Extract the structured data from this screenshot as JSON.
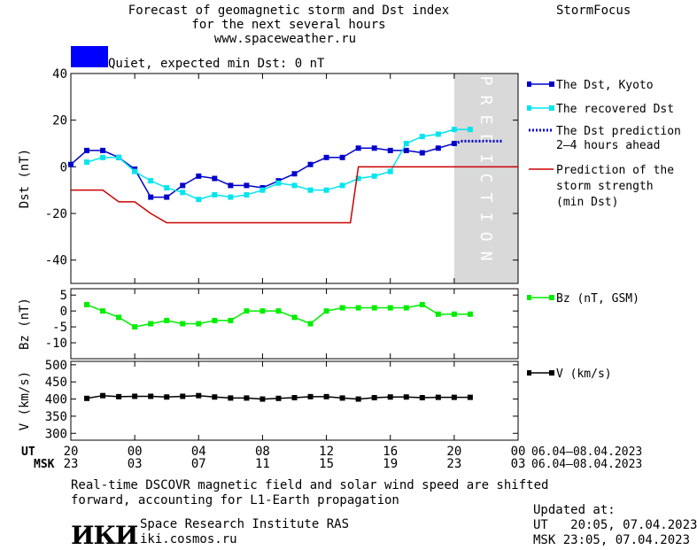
{
  "header": {
    "title_line1": "Forecast of geomagnetic storm and Dst index",
    "title_line2": "for the next several hours",
    "website": "www.spaceweather.ru",
    "brand": "StormFocus"
  },
  "status": {
    "color": "#0000ff",
    "text": "Quiet, expected min Dst: 0 nT"
  },
  "prediction_label": "PREDICTION",
  "chart_data": [
    {
      "type": "line",
      "ylabel": "Dst (nT)",
      "ylim": [
        -50,
        40
      ],
      "yticks": [
        -40,
        -20,
        0,
        20,
        40
      ],
      "x": [
        20.5,
        21,
        22,
        23,
        24,
        25,
        26,
        27,
        28,
        29,
        30,
        31,
        32,
        33,
        34,
        35,
        36,
        37,
        38,
        39,
        40,
        41,
        42,
        43,
        44,
        45,
        46
      ],
      "series": [
        {
          "name": "The Dst, Kyoto",
          "color": "#0000cc",
          "x": [
            20,
            21,
            22,
            23,
            24,
            25,
            26,
            27,
            28,
            29,
            30,
            31,
            32,
            33,
            34,
            35,
            36,
            37,
            38,
            39,
            40,
            41,
            42,
            43,
            44
          ],
          "values": [
            1,
            7,
            7,
            4,
            -1,
            -13,
            -13,
            -8,
            -4,
            -5,
            -8,
            -8,
            -9,
            -6,
            -3,
            1,
            4,
            4,
            8,
            8,
            7,
            7,
            6,
            8,
            10
          ]
        },
        {
          "name": "The recovered Dst",
          "color": "#00e5ee",
          "x": [
            21,
            22,
            23,
            24,
            25,
            26,
            27,
            28,
            29,
            30,
            31,
            32,
            33,
            34,
            35,
            36,
            37,
            38,
            39,
            40,
            41,
            42,
            43,
            44,
            45
          ],
          "values": [
            2,
            4,
            4,
            -2,
            -6,
            -9,
            -11,
            -14,
            -12,
            -13,
            -12,
            -10,
            -7,
            -8,
            -10,
            -10,
            -8,
            -5,
            -4,
            -2,
            10,
            13,
            14,
            16,
            16
          ]
        },
        {
          "name": "The Dst prediction 2-4 hours ahead",
          "color": "#0000cc",
          "dotted": true,
          "x": [
            44,
            44.5,
            45,
            46,
            47
          ],
          "values": [
            10,
            11,
            11,
            11,
            11
          ]
        },
        {
          "name": "Prediction of the storm strength (min Dst)",
          "color": "#cc0000",
          "x": [
            20,
            22,
            23,
            24,
            25,
            26,
            28,
            30,
            32,
            34,
            36,
            37,
            37.5,
            38,
            39,
            40,
            41,
            42,
            43,
            44,
            45,
            46,
            47,
            48
          ],
          "values": [
            -10,
            -10,
            -15,
            -15,
            -20,
            -24,
            -24,
            -24,
            -24,
            -24,
            -24,
            -24,
            -24,
            0,
            0,
            0,
            0,
            0,
            0,
            0,
            0,
            0,
            0,
            0
          ]
        }
      ],
      "prediction_zone": [
        44,
        48
      ]
    },
    {
      "type": "line",
      "ylabel": "Bz (nT)",
      "ylim": [
        -15,
        7
      ],
      "yticks": [
        -10,
        -5,
        0,
        5
      ],
      "series": [
        {
          "name": "Bz (nT, GSM)",
          "color": "#00ee00",
          "x": [
            21,
            22,
            23,
            24,
            25,
            26,
            27,
            28,
            29,
            30,
            31,
            32,
            33,
            34,
            35,
            36,
            37,
            38,
            39,
            40,
            41,
            42,
            43,
            44,
            45
          ],
          "values": [
            2,
            0,
            -2,
            -5,
            -4,
            -3,
            -4,
            -4,
            -3,
            -3,
            0,
            0,
            0,
            -2,
            -4,
            0,
            1,
            1,
            1,
            1,
            1,
            2,
            -1,
            -1,
            -1
          ]
        }
      ]
    },
    {
      "type": "line",
      "ylabel": "V (km/s)",
      "ylim": [
        280,
        510
      ],
      "yticks": [
        300,
        350,
        400,
        450,
        500
      ],
      "series": [
        {
          "name": "V (km/s)",
          "color": "#000000",
          "x": [
            21,
            22,
            23,
            24,
            25,
            26,
            27,
            28,
            29,
            30,
            31,
            32,
            33,
            34,
            35,
            36,
            37,
            38,
            39,
            40,
            41,
            42,
            43,
            44,
            45
          ],
          "values": [
            402,
            410,
            407,
            408,
            408,
            406,
            408,
            410,
            406,
            403,
            403,
            400,
            402,
            404,
            407,
            407,
            403,
            400,
            404,
            406,
            406,
            404,
            405,
            405,
            405
          ]
        }
      ]
    }
  ],
  "axis": {
    "ut_label": "UT",
    "msk_label": "MSK",
    "ut_ticks": [
      "20",
      "00",
      "04",
      "08",
      "12",
      "16",
      "20",
      "00"
    ],
    "msk_ticks": [
      "23",
      "03",
      "07",
      "11",
      "15",
      "19",
      "23",
      "03"
    ],
    "tick_hours": [
      20,
      24,
      28,
      32,
      36,
      40,
      44,
      48
    ],
    "x_range": [
      20,
      48
    ],
    "date_range_ut": "06.04–08.04.2023",
    "date_range_msk": "06.04–08.04.2023"
  },
  "footer": {
    "note_line1": "Real-time DSCOVR magnetic field and solar wind speed are shifted",
    "note_line2": "forward, accounting for L1-Earth propagation",
    "logo_text": "ИКИ",
    "institute": "Space Research Institute RAS",
    "institute_url": "iki.cosmos.ru",
    "updated_label": "Updated at:",
    "updated_ut": "UT   20:05, 07.04.2023",
    "updated_msk": "MSK 23:05, 07.04.2023"
  }
}
